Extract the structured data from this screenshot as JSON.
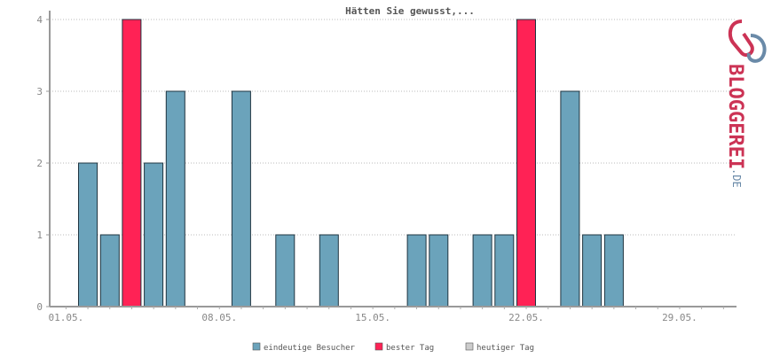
{
  "chart_data": {
    "type": "bar",
    "title": "Hätten Sie gewusst,...",
    "xlabel": "",
    "ylabel": "",
    "ylim": [
      0,
      4
    ],
    "y_ticks": [
      "0",
      "1",
      "2",
      "3",
      "4"
    ],
    "x_tick_labels": [
      "01.05.",
      "08.05.",
      "15.05.",
      "22.05.",
      "29.05."
    ],
    "x_tick_days": [
      1,
      8,
      15,
      22,
      29
    ],
    "days": [
      1,
      2,
      3,
      4,
      5,
      6,
      7,
      8,
      9,
      10,
      11,
      12,
      13,
      14,
      15,
      16,
      17,
      18,
      19,
      20,
      21,
      22,
      23,
      24,
      25,
      26,
      27,
      28,
      29,
      30,
      31
    ],
    "series": [
      {
        "name": "eindeutige Besucher",
        "color": "#6ba3bb",
        "values": [
          0,
          2,
          1,
          0,
          2,
          3,
          0,
          0,
          3,
          0,
          1,
          0,
          1,
          0,
          0,
          0,
          1,
          1,
          0,
          1,
          1,
          0,
          0,
          3,
          1,
          1,
          0,
          0,
          0,
          0,
          0
        ]
      },
      {
        "name": "bester Tag",
        "color": "#ff2255",
        "values": [
          0,
          0,
          0,
          4,
          0,
          0,
          0,
          0,
          0,
          0,
          0,
          0,
          0,
          0,
          0,
          0,
          0,
          0,
          0,
          0,
          0,
          4,
          0,
          0,
          0,
          0,
          0,
          0,
          0,
          0,
          0
        ]
      },
      {
        "name": "heutiger Tag",
        "color": "#cccccc",
        "values": [
          0,
          0,
          0,
          0,
          0,
          0,
          0,
          0,
          0,
          0,
          0,
          0,
          0,
          0,
          0,
          0,
          0,
          0,
          0,
          0,
          0,
          0,
          0,
          0,
          0,
          0,
          0,
          0,
          0,
          0,
          0
        ]
      }
    ],
    "grid": true,
    "legend_position": "bottom-center"
  },
  "logo": {
    "text": "BLOGGEREI",
    "suffix": ".DE",
    "color_main": "#cc3355",
    "color_accent": "#6a8aa8"
  }
}
